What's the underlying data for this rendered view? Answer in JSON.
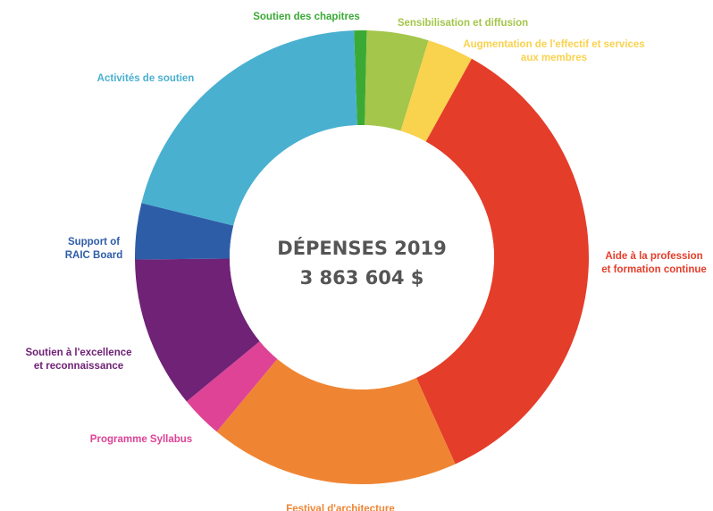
{
  "chart_data": {
    "type": "pie",
    "title": "DÉPENSES 2019",
    "total": "3 863 604 $",
    "slices": [
      {
        "label": [
          "Soutien des chapitres"
        ],
        "value": 0.9,
        "color": "#3aaa35"
      },
      {
        "label": [
          "Sensibilisation et diffusion"
        ],
        "value": 4.4,
        "color": "#a4c64a"
      },
      {
        "label": [
          "Augmentation de l'effectif et services",
          "aux membres"
        ],
        "value": 3.3,
        "color": "#f9d24e"
      },
      {
        "label": [
          "Aide à la profession",
          "et formation continue"
        ],
        "value": 35.2,
        "color": "#e43d2a"
      },
      {
        "label": [
          "Festival d'architecture"
        ],
        "value": 17.8,
        "color": "#ef8533"
      },
      {
        "label": [
          "Programme Syllabus"
        ],
        "value": 3.0,
        "color": "#de4396"
      },
      {
        "label": [
          "Soutien à l'excellence",
          "et reconnaissance"
        ],
        "value": 10.8,
        "color": "#6f2276"
      },
      {
        "label": [
          "Support of",
          "RAIC Board"
        ],
        "value": 4.0,
        "color": "#2e5da8"
      },
      {
        "label": [
          "Activités de soutien"
        ],
        "value": 20.6,
        "color": "#4ab0d0"
      }
    ]
  }
}
